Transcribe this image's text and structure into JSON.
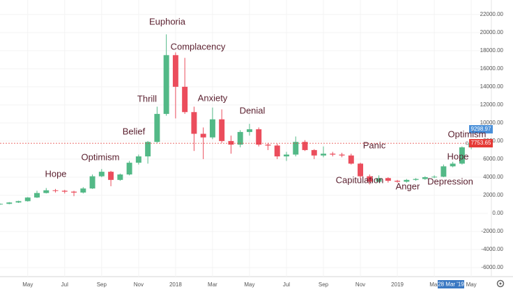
{
  "chart_data": {
    "type": "candlestick",
    "up_color": "#53b987",
    "down_color": "#eb4d5c",
    "grid": true,
    "xlim": [
      3.5,
      29.9
    ],
    "ylim": [
      -7000,
      23600
    ],
    "xticks": [
      {
        "value": 5,
        "label": "May"
      },
      {
        "value": 7,
        "label": "Jul"
      },
      {
        "value": 9,
        "label": "Sep"
      },
      {
        "value": 11,
        "label": "Nov"
      },
      {
        "value": 13,
        "label": "2018"
      },
      {
        "value": 15,
        "label": "Mar"
      },
      {
        "value": 17,
        "label": "May"
      },
      {
        "value": 19,
        "label": "Jul"
      },
      {
        "value": 21,
        "label": "Sep"
      },
      {
        "value": 23,
        "label": "Nov"
      },
      {
        "value": 25,
        "label": "2019"
      },
      {
        "value": 27,
        "label": "Mar"
      },
      {
        "value": 29,
        "label": "May"
      }
    ],
    "yticks": [
      {
        "value": 22000,
        "label": "22000.00"
      },
      {
        "value": 20000,
        "label": "20000.00"
      },
      {
        "value": 18000,
        "label": "18000.00"
      },
      {
        "value": 16000,
        "label": "16000.00"
      },
      {
        "value": 14000,
        "label": "14000.00"
      },
      {
        "value": 12000,
        "label": "12000.00"
      },
      {
        "value": 10000,
        "label": "10000.00"
      },
      {
        "value": 8000,
        "label": "8000.00"
      },
      {
        "value": 6000,
        "label": "6000.00"
      },
      {
        "value": 4000,
        "label": "4000.00"
      },
      {
        "value": 2000,
        "label": "2000.00"
      },
      {
        "value": 0,
        "label": "0.00"
      },
      {
        "value": -2000,
        "label": "-2000.00"
      },
      {
        "value": -4000,
        "label": "-4000.00"
      },
      {
        "value": -6000,
        "label": "-6000.00"
      }
    ],
    "x": [
      3.5,
      4,
      4.5,
      5,
      5.5,
      6,
      6.5,
      7,
      7.5,
      8,
      8.5,
      9,
      9.5,
      10,
      10.5,
      11,
      11.5,
      12,
      12.5,
      13,
      13.5,
      14,
      14.5,
      15,
      15.5,
      16,
      16.5,
      17,
      17.5,
      18,
      18.5,
      19,
      19.5,
      20,
      20.5,
      21,
      21.5,
      22,
      22.5,
      23,
      23.5,
      24,
      24.5,
      25,
      25.5,
      26,
      26.5,
      27,
      27.5,
      28,
      28.5,
      29
    ],
    "open": [
      1000,
      1050,
      1200,
      1350,
      1750,
      2250,
      2550,
      2500,
      2400,
      2300,
      2750,
      4100,
      4600,
      3700,
      4300,
      5600,
      6300,
      7900,
      11000,
      17500,
      14000,
      11200,
      8800,
      8400,
      10400,
      8000,
      7600,
      9000,
      9300,
      7600,
      7500,
      6300,
      6500,
      7900,
      7000,
      6400,
      6600,
      6500,
      6400,
      5500,
      4100,
      3500,
      3900,
      3600,
      3500,
      3700,
      3800,
      4000,
      4050,
      5200,
      5500,
      7300
    ],
    "high": [
      1100,
      1250,
      1400,
      1800,
      2500,
      2800,
      2700,
      2600,
      2500,
      2900,
      4300,
      4900,
      4700,
      4400,
      5800,
      6500,
      8000,
      11800,
      19800,
      17800,
      17200,
      11800,
      9500,
      11700,
      11500,
      8600,
      9200,
      9900,
      9500,
      7800,
      7700,
      6800,
      8500,
      8100,
      7100,
      7400,
      6800,
      6700,
      6600,
      5600,
      4300,
      4200,
      4000,
      3700,
      3800,
      3900,
      4100,
      4200,
      5400,
      5700,
      7400,
      8000
    ],
    "low": [
      950,
      1000,
      1150,
      1300,
      1700,
      2200,
      2300,
      2200,
      1900,
      2200,
      2700,
      4000,
      3000,
      3600,
      4200,
      5400,
      5500,
      7800,
      10800,
      10500,
      11000,
      6900,
      6000,
      8200,
      7800,
      6600,
      7300,
      8600,
      7400,
      7000,
      6000,
      5800,
      6300,
      6900,
      6000,
      6200,
      6300,
      6200,
      5400,
      3800,
      3200,
      3400,
      3400,
      3400,
      3400,
      3600,
      3700,
      3900,
      4000,
      5100,
      5400,
      7100
    ],
    "close": [
      1050,
      1200,
      1350,
      1750,
      2250,
      2550,
      2500,
      2400,
      2300,
      2750,
      4100,
      4600,
      3700,
      4300,
      5600,
      6300,
      7900,
      11000,
      17500,
      14000,
      11200,
      8800,
      8400,
      10400,
      8000,
      7600,
      9000,
      9300,
      7600,
      7500,
      6300,
      6500,
      7900,
      7000,
      6400,
      6600,
      6500,
      6400,
      5500,
      4100,
      3500,
      3900,
      3600,
      3500,
      3700,
      3800,
      4000,
      4050,
      5200,
      5500,
      7300,
      7750
    ],
    "price_tags": [
      {
        "value": 9298.97,
        "color": "#4a90d9"
      },
      {
        "value": 7753.65,
        "color": "#e53935"
      }
    ],
    "crosshair": {
      "value": 27.9,
      "label": "28 Mar '19"
    },
    "annotations": [
      "Hope",
      "Optimism",
      "Belief",
      "Thrill",
      "Euphoria",
      "Complacency",
      "Anxiety",
      "Denial",
      "Capitulation",
      "Panic",
      "Anger",
      "Depression",
      "Hope",
      "Optimism"
    ]
  }
}
